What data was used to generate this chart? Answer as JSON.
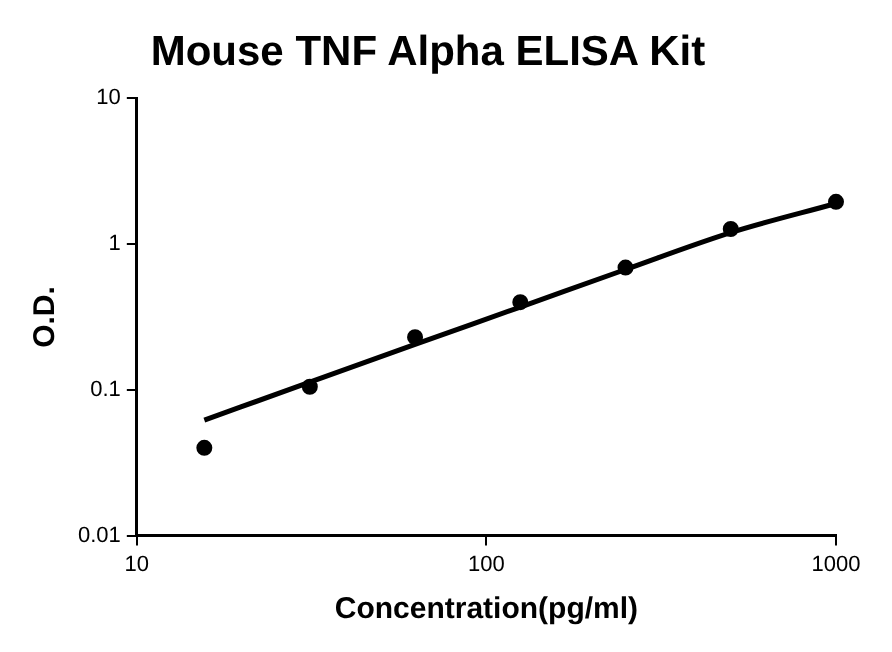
{
  "chart_data": {
    "type": "scatter",
    "title": "Mouse TNF Alpha ELISA Kit",
    "xlabel": "Concentration(pg/ml)",
    "ylabel": "O.D.",
    "log": "xy",
    "grid": false,
    "legend": false,
    "xlim": [
      10,
      1000
    ],
    "xticks": [
      10,
      100,
      1000
    ],
    "ylim": [
      0.01,
      10
    ],
    "yticks": [
      0.01,
      0.1,
      1,
      10
    ],
    "series": [
      {
        "color": "#000000",
        "marker": "circle",
        "x": [
          15.6,
          31.25,
          62.5,
          125,
          250,
          500,
          1000
        ],
        "values": [
          0.04,
          0.105,
          0.23,
          0.4,
          0.69,
          1.27,
          1.95
        ]
      },
      {
        "type": "line",
        "color": "#000000",
        "marker": "none",
        "line_style": "solid",
        "x": [
          15.6,
          31.25,
          62.5,
          125,
          250,
          500,
          1000
        ],
        "values": [
          0.062,
          0.113,
          0.205,
          0.37,
          0.67,
          1.2,
          1.9
        ]
      }
    ]
  }
}
